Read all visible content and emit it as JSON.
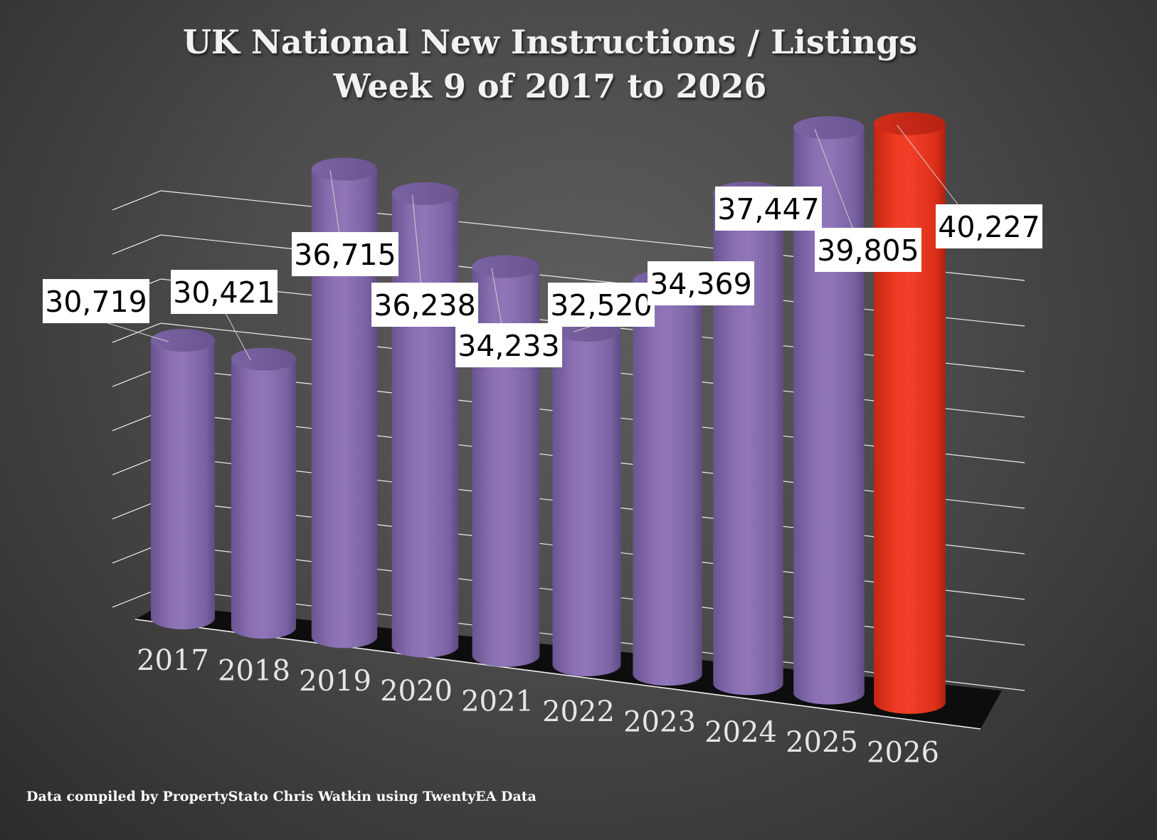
{
  "chart_data": {
    "type": "bar",
    "title": "UK National New Instructions / Listings",
    "subtitle": "Week 9 of 2017 to 2026",
    "categories": [
      "2017",
      "2018",
      "2019",
      "2020",
      "2021",
      "2022",
      "2023",
      "2024",
      "2025",
      "2026"
    ],
    "values": [
      30719,
      30421,
      36715,
      36238,
      34233,
      32520,
      34369,
      37447,
      39805,
      40227
    ],
    "value_labels": [
      "30,719",
      "30,421",
      "36,715",
      "36,238",
      "34,233",
      "32,520",
      "34,369",
      "37,447",
      "39,805",
      "40,227"
    ],
    "bar_colors": [
      "#8067a8",
      "#8067a8",
      "#8067a8",
      "#8067a8",
      "#8067a8",
      "#8067a8",
      "#8067a8",
      "#8067a8",
      "#8067a8",
      "#e8321f"
    ],
    "style": "3d-cylinder",
    "grid": true,
    "legend": "none"
  },
  "footer": {
    "source": "Data compiled by PropertyStato Chris Watkin using TwentyEA Data"
  },
  "colors": {
    "bar": "#8067a8",
    "highlight": "#e8321f",
    "title": "#f2f2f2",
    "label_box": "#ffffff",
    "label_text": "#000000",
    "category_text": "#e6e6e6"
  }
}
